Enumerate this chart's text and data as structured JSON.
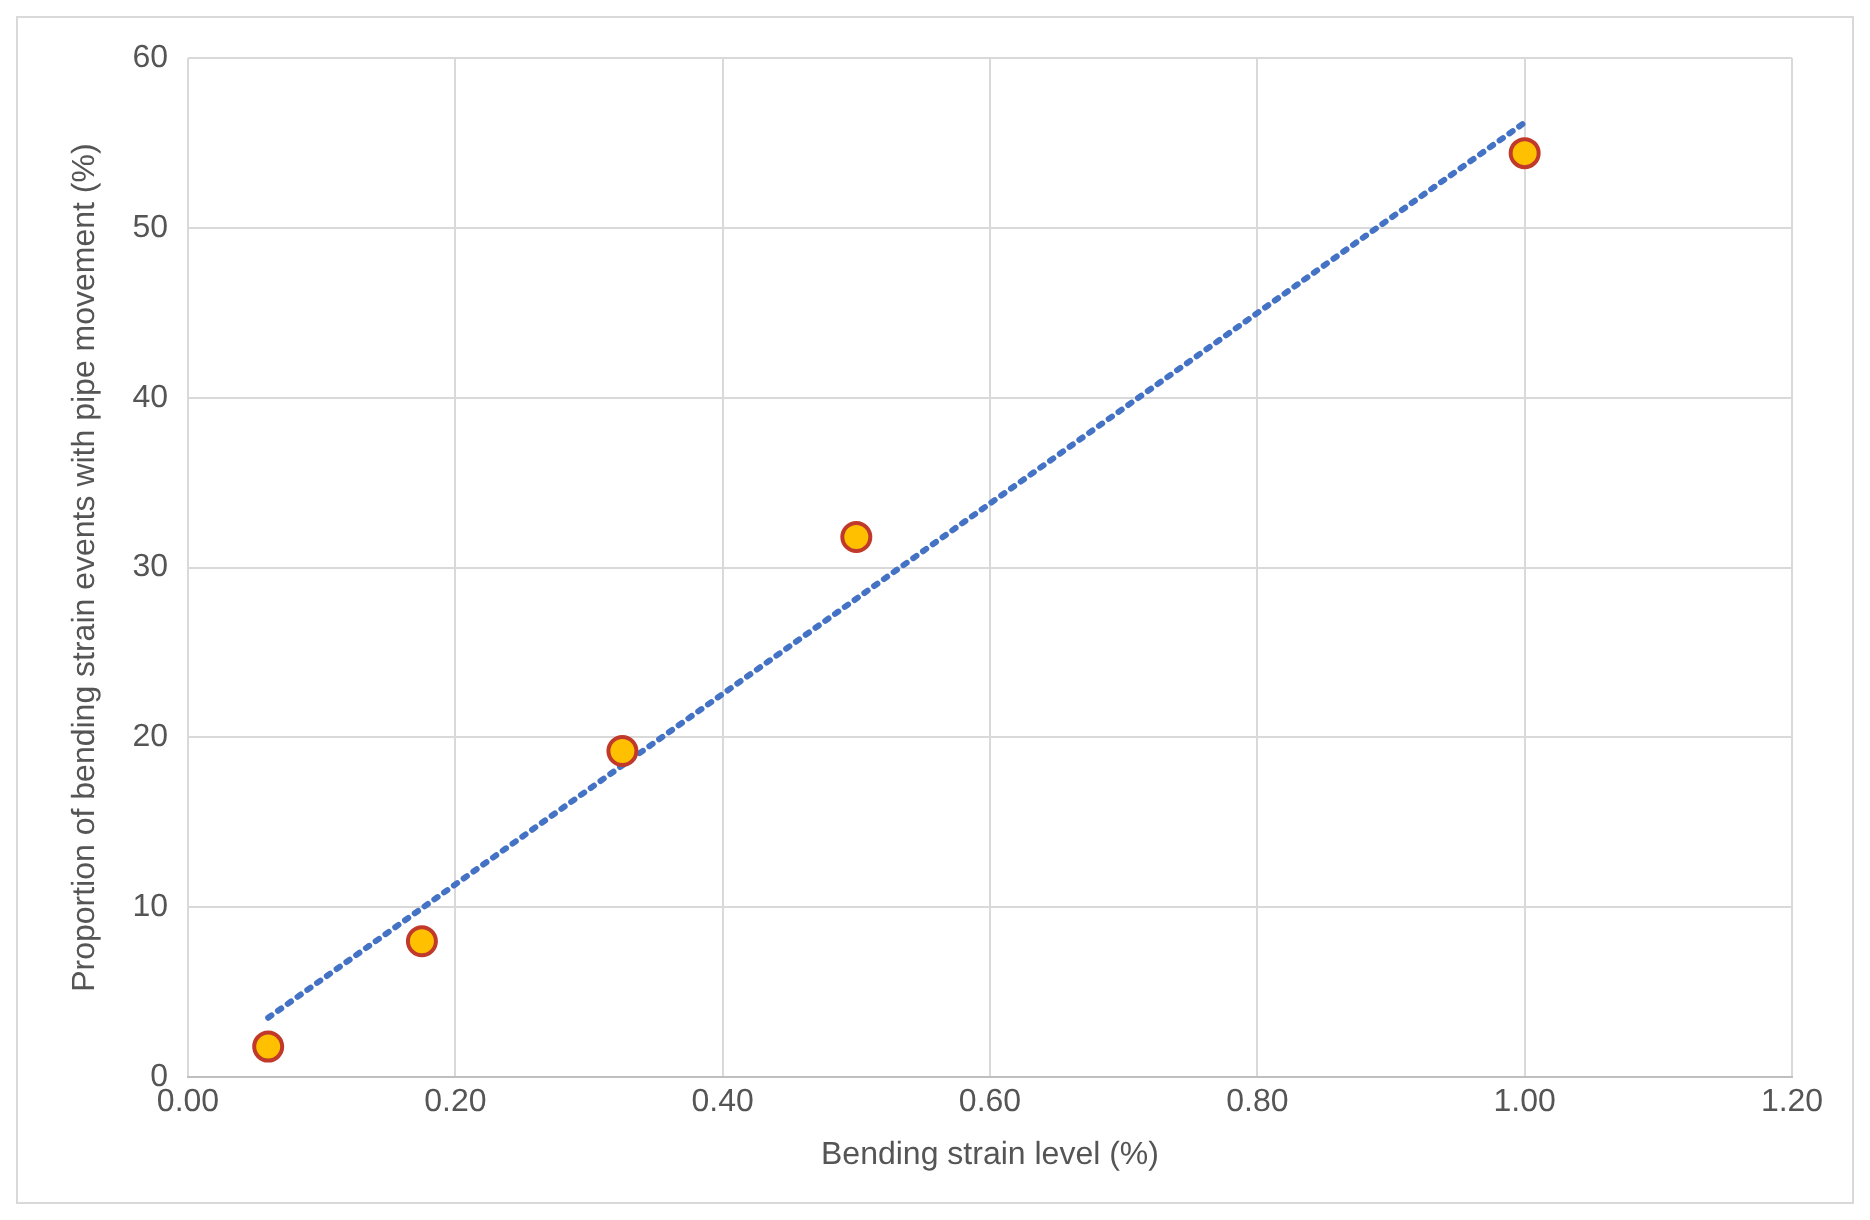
{
  "chart_data": {
    "type": "scatter",
    "xlabel": "Bending strain level (%)",
    "ylabel": "Proportion of bending strain events with pipe movement (%)",
    "xlim": [
      0,
      1.2
    ],
    "xticks": [
      {
        "value": 0,
        "label": "0.00"
      },
      {
        "value": 0.2,
        "label": "0.20"
      },
      {
        "value": 0.4,
        "label": "0.40"
      },
      {
        "value": 0.6,
        "label": "0.60"
      },
      {
        "value": 0.8,
        "label": "0.80"
      },
      {
        "value": 1,
        "label": "1.00"
      },
      {
        "value": 1.2,
        "label": "1.20"
      }
    ],
    "ylim": [
      0,
      60
    ],
    "yticks": [
      0,
      10,
      20,
      30,
      40,
      50,
      60
    ],
    "grid": true,
    "legend": false,
    "series": [
      {
        "type": "scatter",
        "color": "#ffc000",
        "marker": "circle",
        "x": [
          0.06,
          0.175,
          0.325,
          0.5,
          1.0
        ],
        "values": [
          1.8,
          8,
          19.2,
          31.8,
          54.4
        ]
      },
      {
        "type": "line",
        "color": "#4472c4",
        "marker": "none",
        "line_style": "dotted",
        "x": [
          0.06,
          1.0
        ],
        "values": [
          3.5,
          56.2
        ]
      }
    ]
  }
}
